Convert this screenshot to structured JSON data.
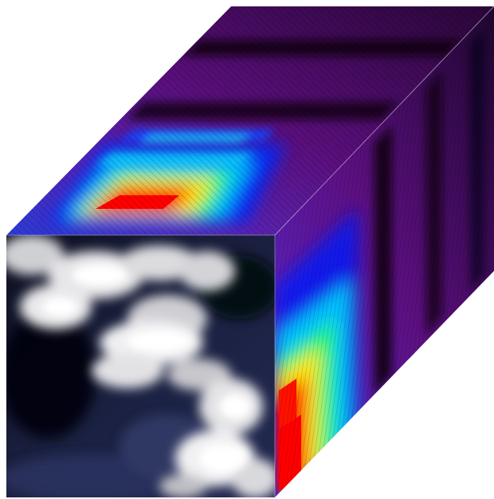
{
  "figure": {
    "kind": "hyperspectral-data-cube",
    "background_color": "#ffffff",
    "faces": {
      "front": {
        "content": "cloud-imagery",
        "colors": [
          "#0a0d1a",
          "#1a2244",
          "#e8e8ea",
          "#ffffff"
        ]
      },
      "top": {
        "content": "spectral-heatmap",
        "colors": [
          "#ff0000",
          "#ffee00",
          "#00ff66",
          "#00ddff",
          "#0033ff",
          "#4a0070",
          "#100010"
        ]
      },
      "side": {
        "content": "spectral-heatmap",
        "colors": [
          "#ff0000",
          "#ffee00",
          "#00ff66",
          "#00ddff",
          "#0033ff",
          "#4a0070",
          "#100010"
        ]
      }
    }
  }
}
